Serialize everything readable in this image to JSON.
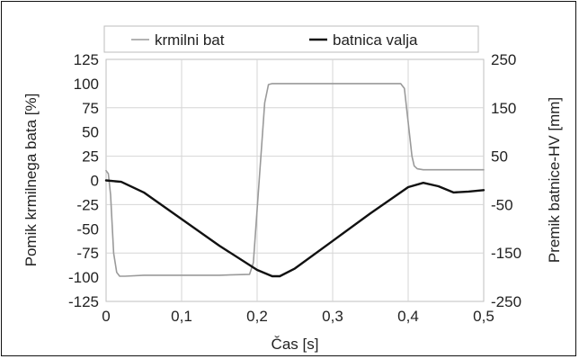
{
  "chart_data": {
    "type": "line",
    "xlabel": "Čas  [s]",
    "ylabel_left": "Pomik krmilnega bata [%]",
    "ylabel_right": "Premik batnice-HV [mm]",
    "xlim": [
      0,
      0.5
    ],
    "ylim_left": [
      -125,
      125
    ],
    "ylim_right": [
      -250,
      250
    ],
    "x_ticks": [
      "0",
      "0,1",
      "0,2",
      "0,3",
      "0,4",
      "0,5"
    ],
    "y_ticks_left": [
      "125",
      "100",
      "75",
      "50",
      "25",
      "0",
      "-25",
      "-50",
      "-75",
      "-100",
      "-125"
    ],
    "y_ticks_right": [
      "250",
      "150",
      "50",
      "-50",
      "-150",
      "-250"
    ],
    "grid": true,
    "legend_position": "top",
    "series": [
      {
        "name": "krmilni bat",
        "axis": "left",
        "color": "#9a9a9a",
        "x": [
          0,
          0.003,
          0.006,
          0.01,
          0.014,
          0.018,
          0.025,
          0.05,
          0.1,
          0.15,
          0.19,
          0.195,
          0.2,
          0.21,
          0.215,
          0.22,
          0.25,
          0.3,
          0.35,
          0.39,
          0.395,
          0.4,
          0.405,
          0.408,
          0.412,
          0.42,
          0.45,
          0.5
        ],
        "y": [
          10,
          7,
          -15,
          -75,
          -95,
          -99,
          -99,
          -98,
          -98,
          -98,
          -97,
          -85,
          -30,
          80,
          99,
          100,
          100,
          100,
          100,
          100,
          95,
          60,
          25,
          15,
          12,
          11,
          11,
          11
        ]
      },
      {
        "name": "batnica valja",
        "axis": "right",
        "color": "#111111",
        "x": [
          0,
          0.02,
          0.05,
          0.1,
          0.15,
          0.2,
          0.22,
          0.23,
          0.25,
          0.3,
          0.35,
          0.4,
          0.42,
          0.44,
          0.46,
          0.48,
          0.5
        ],
        "y": [
          0,
          -3,
          -25,
          -80,
          -135,
          -185,
          -198,
          -198,
          -182,
          -125,
          -68,
          -14,
          -5,
          -12,
          -25,
          -23,
          -20
        ]
      }
    ]
  }
}
